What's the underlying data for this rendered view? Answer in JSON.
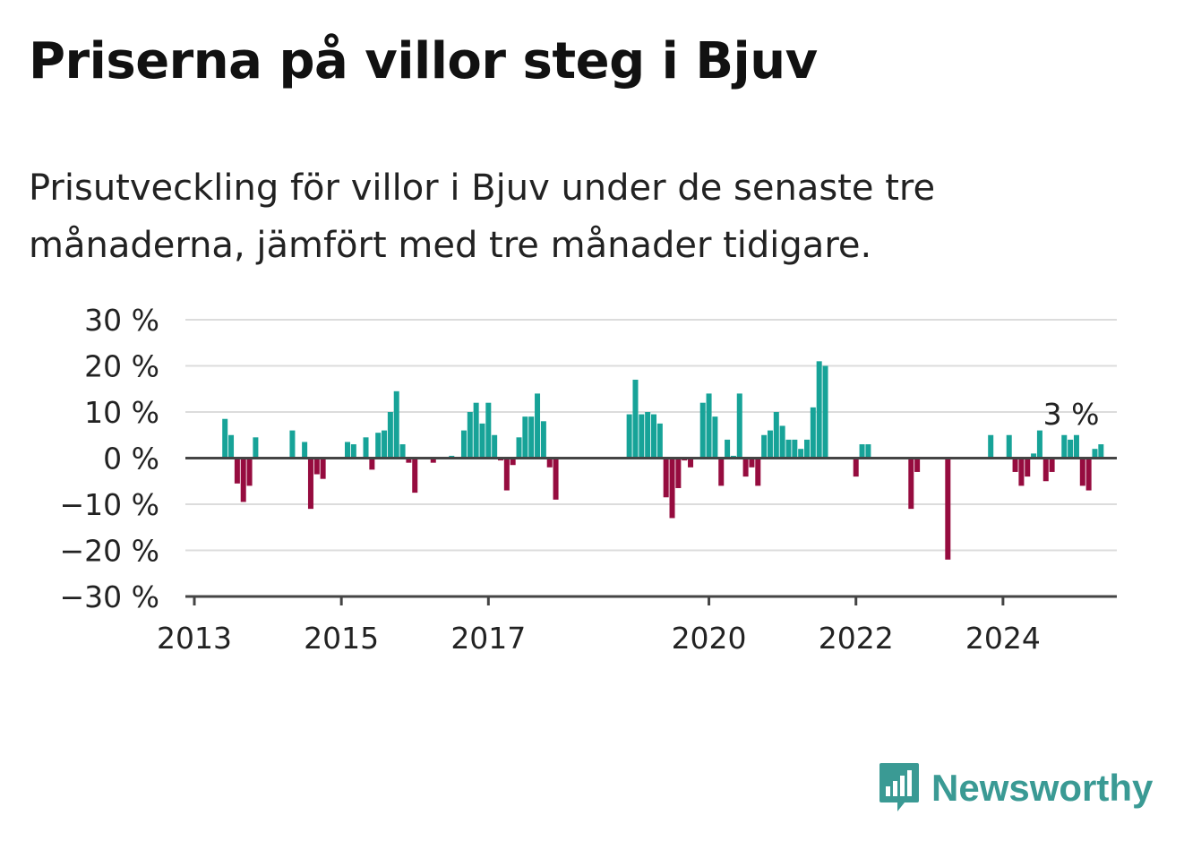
{
  "title": "Priserna på villor steg i Bjuv",
  "subtitle": "Prisutveckling för villor i Bjuv under de senaste tre månaderna, jämfört med tre månader tidigare.",
  "brand": {
    "name": "Newsworthy",
    "icon": "newsworthy-logo-icon"
  },
  "colors": {
    "positive": "#17a398",
    "negative": "#960c3f",
    "grid": "#dcdcdc",
    "axis": "#444444",
    "text": "#222222"
  },
  "chart_data": {
    "type": "bar",
    "ylim": [
      -30,
      30
    ],
    "yticks": [
      30,
      20,
      10,
      0,
      -10,
      -20,
      -30
    ],
    "ytick_labels": [
      "30 %",
      "20 %",
      "10 %",
      "0 %",
      "−10 %",
      "−20 %",
      "−30 %"
    ],
    "xlim": [
      "2013-01",
      "2025-09"
    ],
    "xticks": [
      "2013-01",
      "2015-01",
      "2017-01",
      "2020-01",
      "2022-01",
      "2024-01"
    ],
    "xtick_labels": [
      "2013",
      "2015",
      "2017",
      "2020",
      "2022",
      "2024"
    ],
    "grid": true,
    "last_value_label": "3 %",
    "points": [
      {
        "month": "2013-06",
        "value": 8.5
      },
      {
        "month": "2013-07",
        "value": 5.0
      },
      {
        "month": "2013-08",
        "value": -5.5
      },
      {
        "month": "2013-09",
        "value": -9.5
      },
      {
        "month": "2013-10",
        "value": -6.0
      },
      {
        "month": "2013-11",
        "value": 4.5
      },
      {
        "month": "2014-05",
        "value": 6.0
      },
      {
        "month": "2014-07",
        "value": 3.5
      },
      {
        "month": "2014-08",
        "value": -11.0
      },
      {
        "month": "2014-09",
        "value": -3.5
      },
      {
        "month": "2014-10",
        "value": -4.5
      },
      {
        "month": "2015-02",
        "value": 3.5
      },
      {
        "month": "2015-03",
        "value": 3.0
      },
      {
        "month": "2015-05",
        "value": 4.5
      },
      {
        "month": "2015-06",
        "value": -2.5
      },
      {
        "month": "2015-07",
        "value": 5.5
      },
      {
        "month": "2015-08",
        "value": 6.0
      },
      {
        "month": "2015-09",
        "value": 10.0
      },
      {
        "month": "2015-10",
        "value": 14.5
      },
      {
        "month": "2015-11",
        "value": 3.0
      },
      {
        "month": "2015-12",
        "value": -1.0
      },
      {
        "month": "2016-01",
        "value": -7.5
      },
      {
        "month": "2016-04",
        "value": -1.0
      },
      {
        "month": "2016-07",
        "value": 0.5
      },
      {
        "month": "2016-09",
        "value": 6.0
      },
      {
        "month": "2016-10",
        "value": 10.0
      },
      {
        "month": "2016-11",
        "value": 12.0
      },
      {
        "month": "2016-12",
        "value": 7.5
      },
      {
        "month": "2017-01",
        "value": 12.0
      },
      {
        "month": "2017-02",
        "value": 5.0
      },
      {
        "month": "2017-03",
        "value": -0.5
      },
      {
        "month": "2017-04",
        "value": -7.0
      },
      {
        "month": "2017-05",
        "value": -1.5
      },
      {
        "month": "2017-06",
        "value": 4.5
      },
      {
        "month": "2017-07",
        "value": 9.0
      },
      {
        "month": "2017-08",
        "value": 9.0
      },
      {
        "month": "2017-09",
        "value": 14.0
      },
      {
        "month": "2017-10",
        "value": 8.0
      },
      {
        "month": "2017-11",
        "value": -2.0
      },
      {
        "month": "2017-12",
        "value": -9.0
      },
      {
        "month": "2018-12",
        "value": 9.5
      },
      {
        "month": "2019-01",
        "value": 17.0
      },
      {
        "month": "2019-02",
        "value": 9.5
      },
      {
        "month": "2019-03",
        "value": 10.0
      },
      {
        "month": "2019-04",
        "value": 9.5
      },
      {
        "month": "2019-05",
        "value": 7.5
      },
      {
        "month": "2019-06",
        "value": -8.5
      },
      {
        "month": "2019-07",
        "value": -13.0
      },
      {
        "month": "2019-08",
        "value": -6.5
      },
      {
        "month": "2019-09",
        "value": -0.5
      },
      {
        "month": "2019-10",
        "value": -2.0
      },
      {
        "month": "2019-12",
        "value": 12.0
      },
      {
        "month": "2020-01",
        "value": 14.0
      },
      {
        "month": "2020-02",
        "value": 9.0
      },
      {
        "month": "2020-03",
        "value": -6.0
      },
      {
        "month": "2020-04",
        "value": 4.0
      },
      {
        "month": "2020-05",
        "value": 0.5
      },
      {
        "month": "2020-06",
        "value": 14.0
      },
      {
        "month": "2020-07",
        "value": -4.0
      },
      {
        "month": "2020-08",
        "value": -2.0
      },
      {
        "month": "2020-09",
        "value": -6.0
      },
      {
        "month": "2020-10",
        "value": 5.0
      },
      {
        "month": "2020-11",
        "value": 6.0
      },
      {
        "month": "2020-12",
        "value": 10.0
      },
      {
        "month": "2021-01",
        "value": 7.0
      },
      {
        "month": "2021-02",
        "value": 4.0
      },
      {
        "month": "2021-03",
        "value": 4.0
      },
      {
        "month": "2021-04",
        "value": 2.0
      },
      {
        "month": "2021-05",
        "value": 4.0
      },
      {
        "month": "2021-06",
        "value": 11.0
      },
      {
        "month": "2021-07",
        "value": 21.0
      },
      {
        "month": "2021-08",
        "value": 20.0
      },
      {
        "month": "2022-01",
        "value": -4.0
      },
      {
        "month": "2022-02",
        "value": 3.0
      },
      {
        "month": "2022-03",
        "value": 3.0
      },
      {
        "month": "2022-10",
        "value": -11.0
      },
      {
        "month": "2022-11",
        "value": -3.0
      },
      {
        "month": "2023-04",
        "value": -22.0
      },
      {
        "month": "2023-11",
        "value": 5.0
      },
      {
        "month": "2024-02",
        "value": 5.0
      },
      {
        "month": "2024-03",
        "value": -3.0
      },
      {
        "month": "2024-04",
        "value": -6.0
      },
      {
        "month": "2024-05",
        "value": -4.0
      },
      {
        "month": "2024-06",
        "value": 1.0
      },
      {
        "month": "2024-07",
        "value": 6.0
      },
      {
        "month": "2024-08",
        "value": -5.0
      },
      {
        "month": "2024-09",
        "value": -3.0
      },
      {
        "month": "2024-11",
        "value": 5.0
      },
      {
        "month": "2024-12",
        "value": 4.0
      },
      {
        "month": "2025-01",
        "value": 5.0
      },
      {
        "month": "2025-02",
        "value": -6.0
      },
      {
        "month": "2025-03",
        "value": -7.0
      },
      {
        "month": "2025-04",
        "value": 2.0
      },
      {
        "month": "2025-05",
        "value": 3.0
      }
    ]
  }
}
